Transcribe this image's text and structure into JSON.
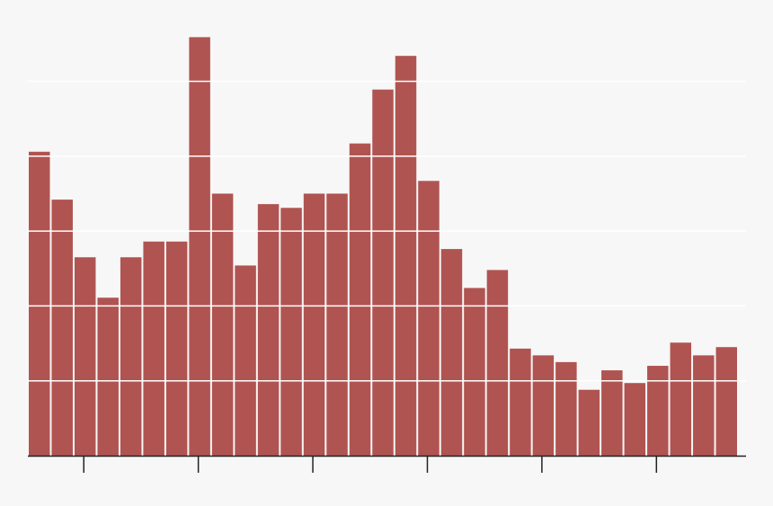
{
  "chart_data": {
    "type": "bar",
    "title": "",
    "xlabel": "",
    "ylabel": "",
    "values": [
      4.06,
      3.42,
      2.65,
      2.11,
      2.65,
      2.86,
      2.86,
      5.59,
      3.5,
      2.54,
      3.36,
      3.31,
      3.5,
      3.5,
      4.17,
      4.89,
      5.34,
      3.67,
      2.76,
      2.24,
      2.48,
      1.43,
      1.34,
      1.25,
      0.88,
      1.14,
      0.97,
      1.2,
      1.51,
      1.34,
      1.45
    ],
    "ylim": [
      0,
      5.59
    ],
    "y_gridlines": [
      1,
      2,
      3,
      4,
      5
    ],
    "x_tick_bar_positions": [
      3,
      8,
      13,
      18,
      23,
      28
    ],
    "grid": true,
    "gridlines_over_bars": true,
    "tick_labels_shown": false,
    "colors": {
      "bar": "#b05451",
      "background": "#f7f7f7",
      "grid": "#ffffff",
      "axis": "#222222"
    }
  }
}
